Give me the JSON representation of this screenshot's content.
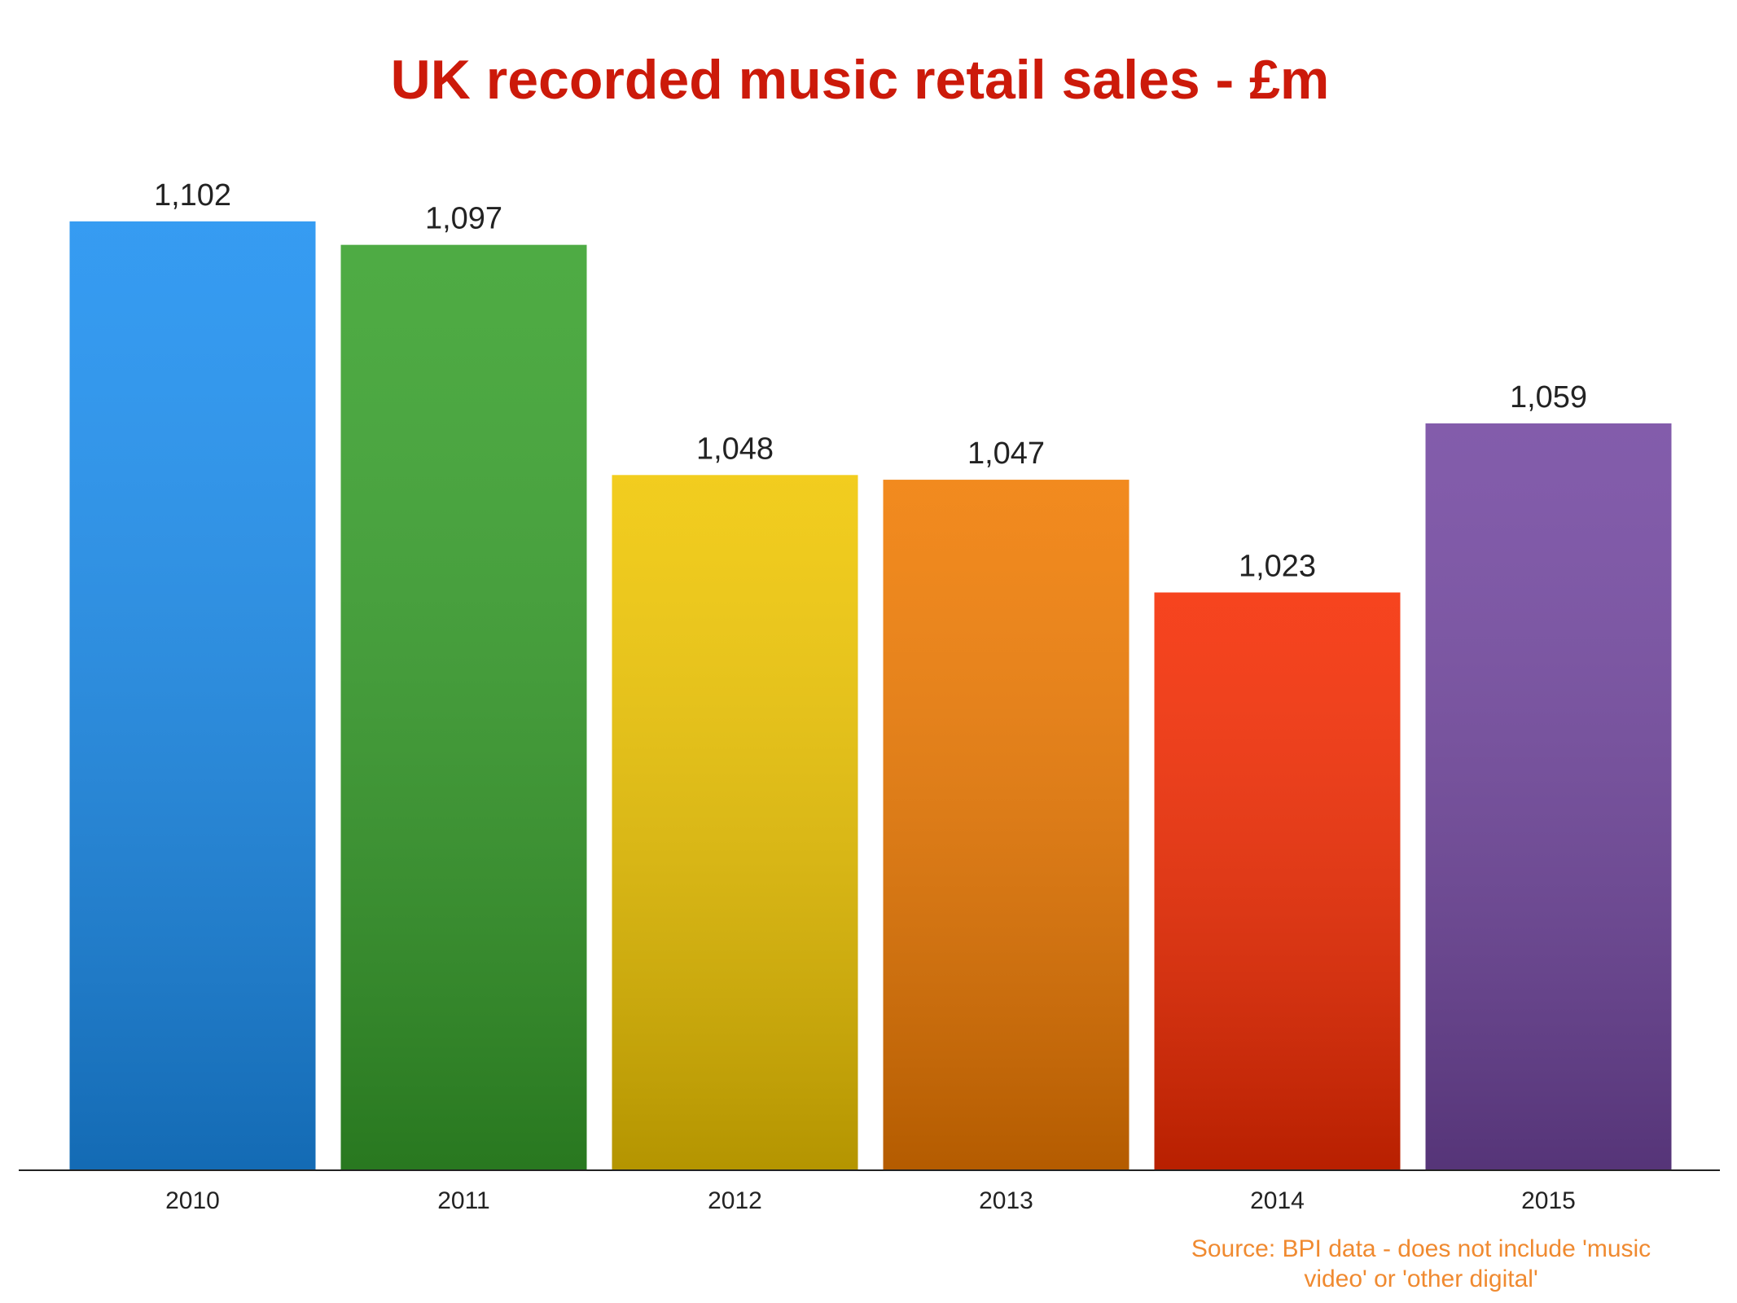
{
  "chart_data": {
    "type": "bar",
    "title": "UK recorded music retail sales - £m",
    "categories": [
      "2010",
      "2011",
      "2012",
      "2013",
      "2014",
      "2015"
    ],
    "values": [
      1102,
      1097,
      1048,
      1047,
      1023,
      1059
    ],
    "value_labels": [
      "1,102",
      "1,097",
      "1,048",
      "1,047",
      "1,023",
      "1,059"
    ],
    "colors": [
      "#1a8ef0",
      "#36a02a",
      "#f0c600",
      "#f07a00",
      "#f52a00",
      "#7246a0"
    ],
    "ylim": [
      900,
      1120
    ],
    "source": [
      "Source: BPI data - does not include 'music",
      "video' or 'other digital'"
    ]
  }
}
